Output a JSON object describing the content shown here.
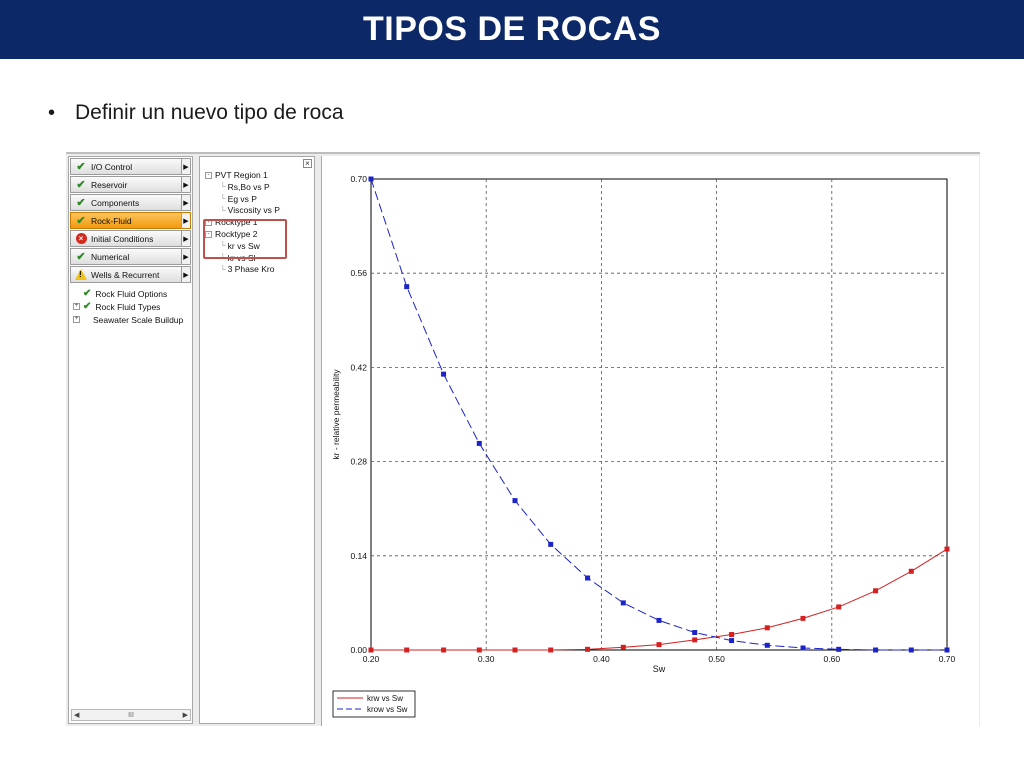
{
  "slide": {
    "title": "TIPOS DE ROCAS",
    "bullet": "Definir un nuevo tipo de roca"
  },
  "nav": {
    "items": [
      {
        "label": "I/O Control",
        "status": "check"
      },
      {
        "label": "Reservoir",
        "status": "check"
      },
      {
        "label": "Components",
        "status": "check"
      },
      {
        "label": "Rock-Fluid",
        "status": "check",
        "active": true
      },
      {
        "label": "Initial Conditions",
        "status": "error"
      },
      {
        "label": "Numerical",
        "status": "check"
      },
      {
        "label": "Wells & Recurrent",
        "status": "warning"
      }
    ],
    "subtree": [
      {
        "label": "Rock Fluid Options",
        "check": true,
        "expandable": false
      },
      {
        "label": "Rock Fluid Types",
        "check": true,
        "expandable": true
      },
      {
        "label": "Seawater Scale Buildup",
        "check": false,
        "expandable": true
      }
    ],
    "scroll_thumb": "III"
  },
  "tree": {
    "rows": [
      {
        "label": "PVT Region 1",
        "level": 0,
        "expander": "-"
      },
      {
        "label": "Rs,Bo vs P",
        "level": 1
      },
      {
        "label": "Eg vs P",
        "level": 1
      },
      {
        "label": "Viscosity vs P",
        "level": 1
      },
      {
        "label": "Rocktype  1",
        "level": 0,
        "expander": "+"
      },
      {
        "label": "Rocktype  2",
        "level": 0,
        "expander": "-"
      },
      {
        "label": "kr vs Sw",
        "level": 1
      },
      {
        "label": "kr vs Sl",
        "level": 1
      },
      {
        "label": "3 Phase Kro",
        "level": 1
      }
    ],
    "highlight_color": "#c0504d"
  },
  "chart_data": {
    "type": "line",
    "xlabel": "Sw",
    "ylabel": "kr - relative permeability",
    "xlim": [
      0.2,
      0.7
    ],
    "ylim": [
      0.0,
      0.7
    ],
    "xticks": [
      "0.20",
      "0.30",
      "0.40",
      "0.50",
      "0.60",
      "0.70"
    ],
    "yticks": [
      "0.00",
      "0.14",
      "0.28",
      "0.42",
      "0.56",
      "0.70"
    ],
    "grid": true,
    "legend_position": "bottom-left",
    "series": [
      {
        "name": "krw vs Sw",
        "color": "#d42020",
        "dash": false,
        "x": [
          0.2,
          0.231,
          0.263,
          0.294,
          0.325,
          0.356,
          0.388,
          0.419,
          0.45,
          0.481,
          0.513,
          0.544,
          0.575,
          0.606,
          0.638,
          0.669,
          0.7
        ],
        "y": [
          0.0,
          0.0,
          0.0,
          0.0,
          0.0,
          0.0,
          0.001,
          0.004,
          0.008,
          0.015,
          0.023,
          0.033,
          0.047,
          0.064,
          0.088,
          0.117,
          0.15
        ]
      },
      {
        "name": "krow vs Sw",
        "color": "#1c24c8",
        "dash": true,
        "x": [
          0.2,
          0.231,
          0.263,
          0.294,
          0.325,
          0.356,
          0.388,
          0.419,
          0.45,
          0.481,
          0.513,
          0.544,
          0.575,
          0.606,
          0.638,
          0.669,
          0.7
        ],
        "y": [
          0.7,
          0.54,
          0.41,
          0.307,
          0.222,
          0.157,
          0.107,
          0.07,
          0.044,
          0.026,
          0.014,
          0.007,
          0.003,
          0.001,
          0.0,
          0.0,
          0.0
        ]
      }
    ]
  },
  "colors": {
    "title_bar": "#0c2866",
    "active_nav": "#f39a10"
  }
}
